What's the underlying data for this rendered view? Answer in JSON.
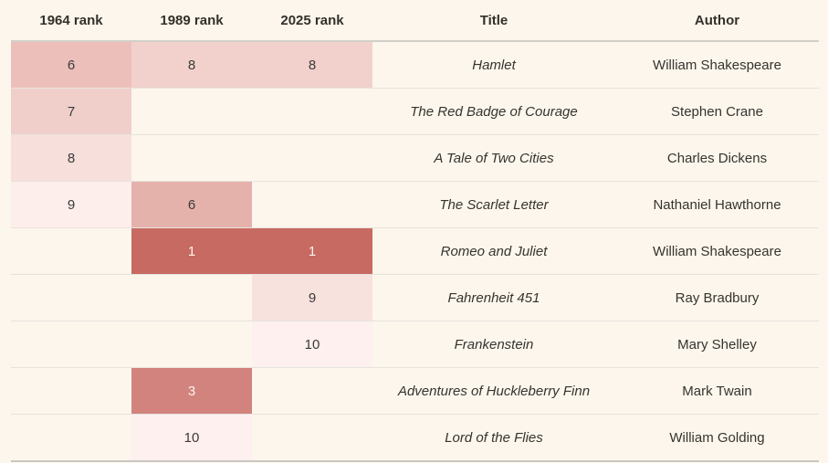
{
  "page": {
    "background": "#fdf6ec"
  },
  "table": {
    "headers": [
      "1964 rank",
      "1989 rank",
      "2025 rank",
      "Title",
      "Author"
    ]
  },
  "rows": [
    {
      "c1964": {
        "v": "6",
        "bg": "#edbfba",
        "fg": ""
      },
      "c1989": {
        "v": "8",
        "bg": "#f2d1cc",
        "fg": ""
      },
      "c2025": {
        "v": "8",
        "bg": "#f2d1cc",
        "fg": ""
      },
      "title": "Hamlet",
      "author": "William Shakespeare"
    },
    {
      "c1964": {
        "v": "7",
        "bg": "#f0cfca",
        "fg": ""
      },
      "c1989": {
        "v": "",
        "bg": "",
        "fg": ""
      },
      "c2025": {
        "v": "",
        "bg": "",
        "fg": ""
      },
      "title": "The Red Badge of Courage",
      "author": "Stephen Crane"
    },
    {
      "c1964": {
        "v": "8",
        "bg": "#f7dfdb",
        "fg": ""
      },
      "c1989": {
        "v": "",
        "bg": "",
        "fg": ""
      },
      "c2025": {
        "v": "",
        "bg": "",
        "fg": ""
      },
      "title": "A Tale of Two Cities",
      "author": "Charles Dickens"
    },
    {
      "c1964": {
        "v": "9",
        "bg": "#fdeeec",
        "fg": ""
      },
      "c1989": {
        "v": "6",
        "bg": "#e5b1ab",
        "fg": ""
      },
      "c2025": {
        "v": "",
        "bg": "",
        "fg": ""
      },
      "title": "The Scarlet Letter",
      "author": "Nathaniel Hawthorne"
    },
    {
      "c1964": {
        "v": "",
        "bg": "",
        "fg": ""
      },
      "c1989": {
        "v": "1",
        "bg": "#c76a62",
        "fg": "#fbf4ee"
      },
      "c2025": {
        "v": "1",
        "bg": "#c76a62",
        "fg": "#fbf4ee"
      },
      "title": "Romeo and Juliet",
      "author": "William Shakespeare"
    },
    {
      "c1964": {
        "v": "",
        "bg": "",
        "fg": ""
      },
      "c1989": {
        "v": "",
        "bg": "",
        "fg": ""
      },
      "c2025": {
        "v": "9",
        "bg": "#f8e2de",
        "fg": ""
      },
      "title": "Fahrenheit 451",
      "author": "Ray Bradbury"
    },
    {
      "c1964": {
        "v": "",
        "bg": "",
        "fg": ""
      },
      "c1989": {
        "v": "",
        "bg": "",
        "fg": ""
      },
      "c2025": {
        "v": "10",
        "bg": "#fdf0ee",
        "fg": ""
      },
      "title": "Frankenstein",
      "author": "Mary Shelley"
    },
    {
      "c1964": {
        "v": "",
        "bg": "",
        "fg": ""
      },
      "c1989": {
        "v": "3",
        "bg": "#d2837e",
        "fg": "#fbf4ee"
      },
      "c2025": {
        "v": "",
        "bg": "",
        "fg": ""
      },
      "title": "Adventures of Huckleberry Finn",
      "author": "Mark Twain"
    },
    {
      "c1964": {
        "v": "",
        "bg": "",
        "fg": ""
      },
      "c1989": {
        "v": "10",
        "bg": "#fdf0ee",
        "fg": ""
      },
      "c2025": {
        "v": "",
        "bg": "",
        "fg": ""
      },
      "title": "Lord of the Flies",
      "author": "William Golding"
    }
  ],
  "chart_data": {
    "type": "table",
    "columns": [
      "1964 rank",
      "1989 rank",
      "2025 rank",
      "Title",
      "Author"
    ],
    "rows": [
      {
        "rank_1964": 6,
        "rank_1989": 8,
        "rank_2025": 8,
        "title": "Hamlet",
        "author": "William Shakespeare"
      },
      {
        "rank_1964": 7,
        "rank_1989": null,
        "rank_2025": null,
        "title": "The Red Badge of Courage",
        "author": "Stephen Crane"
      },
      {
        "rank_1964": 8,
        "rank_1989": null,
        "rank_2025": null,
        "title": "A Tale of Two Cities",
        "author": "Charles Dickens"
      },
      {
        "rank_1964": 9,
        "rank_1989": 6,
        "rank_2025": null,
        "title": "The Scarlet Letter",
        "author": "Nathaniel Hawthorne"
      },
      {
        "rank_1964": null,
        "rank_1989": 1,
        "rank_2025": 1,
        "title": "Romeo and Juliet",
        "author": "William Shakespeare"
      },
      {
        "rank_1964": null,
        "rank_1989": null,
        "rank_2025": 9,
        "title": "Fahrenheit 451",
        "author": "Ray Bradbury"
      },
      {
        "rank_1964": null,
        "rank_1989": null,
        "rank_2025": 10,
        "title": "Frankenstein",
        "author": "Mary Shelley"
      },
      {
        "rank_1964": null,
        "rank_1989": 3,
        "rank_2025": null,
        "title": "Adventures of Huckleberry Finn",
        "author": "Mark Twain"
      },
      {
        "rank_1964": null,
        "rank_1989": 10,
        "rank_2025": null,
        "title": "Lord of the Flies",
        "author": "William Golding"
      }
    ],
    "heatmap": {
      "applies_to": [
        "1964 rank",
        "1989 rank",
        "2025 rank"
      ],
      "dark_color": "#c76a62",
      "light_color": "#fdf0ee",
      "mapping": "lower rank number = darker red cell fill; rank 1 and 3 cells use light text"
    },
    "legend_position": "none",
    "grid": "horizontal row separators only"
  }
}
